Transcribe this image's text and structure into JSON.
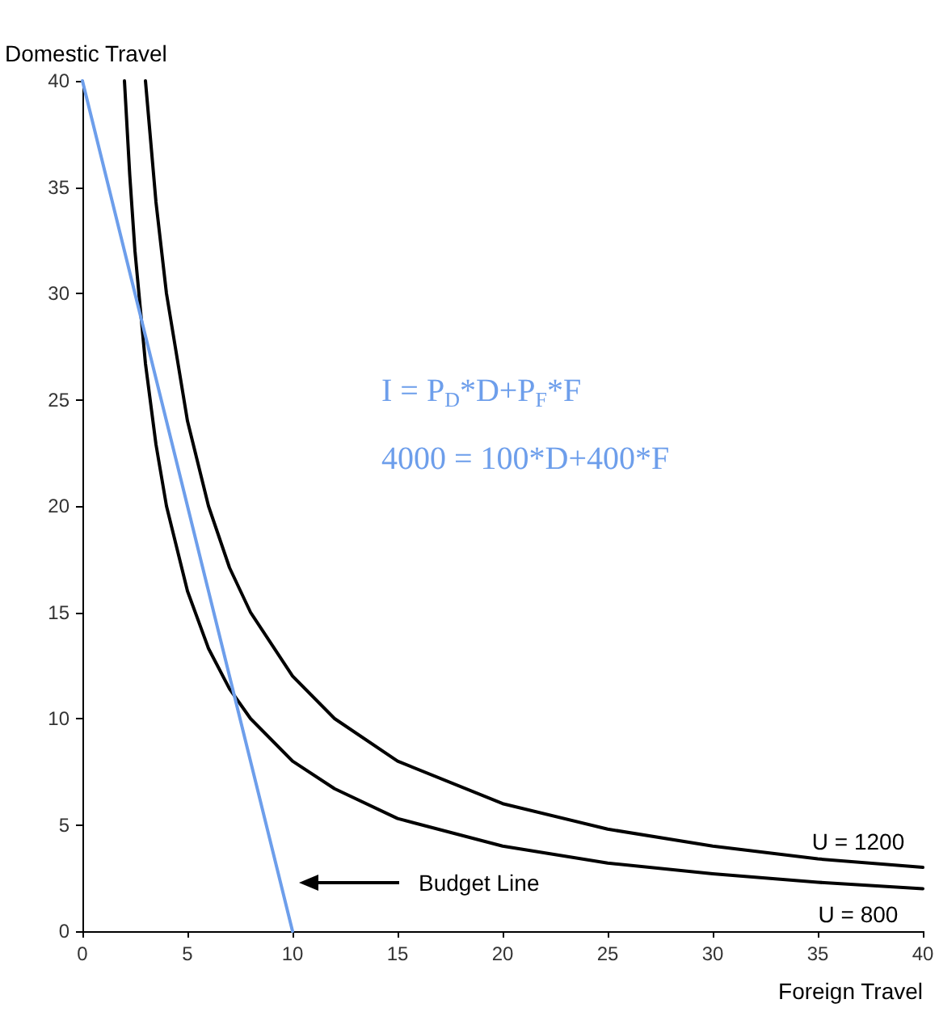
{
  "chart_data": {
    "type": "line",
    "xlabel": "Foreign Travel",
    "ylabel": "Domestic Travel",
    "xlim": [
      0,
      40
    ],
    "xticks": [
      0,
      5,
      10,
      15,
      20,
      25,
      30,
      35,
      40
    ],
    "ylim": [
      0,
      40
    ],
    "yticks": [
      0,
      5,
      10,
      15,
      20,
      25,
      30,
      35,
      40
    ],
    "grid": false,
    "legend": false,
    "marker": "none",
    "line_style": "solid",
    "series": [
      {
        "name": "U = 1200",
        "color": "#000000",
        "x": [
          3,
          3.5,
          4,
          5,
          6,
          7,
          8,
          10,
          12,
          15,
          20,
          25,
          30,
          35,
          40
        ],
        "values": [
          40,
          34.3,
          30,
          24,
          20,
          17.1,
          15,
          12,
          10,
          8,
          6,
          4.8,
          4,
          3.4,
          3
        ]
      },
      {
        "name": "U = 800",
        "color": "#000000",
        "x": [
          2,
          2.25,
          2.5,
          3,
          3.5,
          4,
          5,
          6,
          7,
          8,
          10,
          12,
          15,
          20,
          25,
          30,
          35,
          40
        ],
        "values": [
          40,
          35.6,
          32,
          26.7,
          22.9,
          20,
          16,
          13.3,
          11.4,
          10,
          8,
          6.7,
          5.3,
          4,
          3.2,
          2.7,
          2.3,
          2
        ]
      },
      {
        "color": "#6d9eeb",
        "x": [
          0,
          10
        ],
        "values": [
          40,
          0
        ]
      }
    ],
    "annotations": [
      "I = P$_{D}$*D+P$_{F}$*F",
      "4000 = 100*D+400*F",
      "Budget Line"
    ]
  }
}
